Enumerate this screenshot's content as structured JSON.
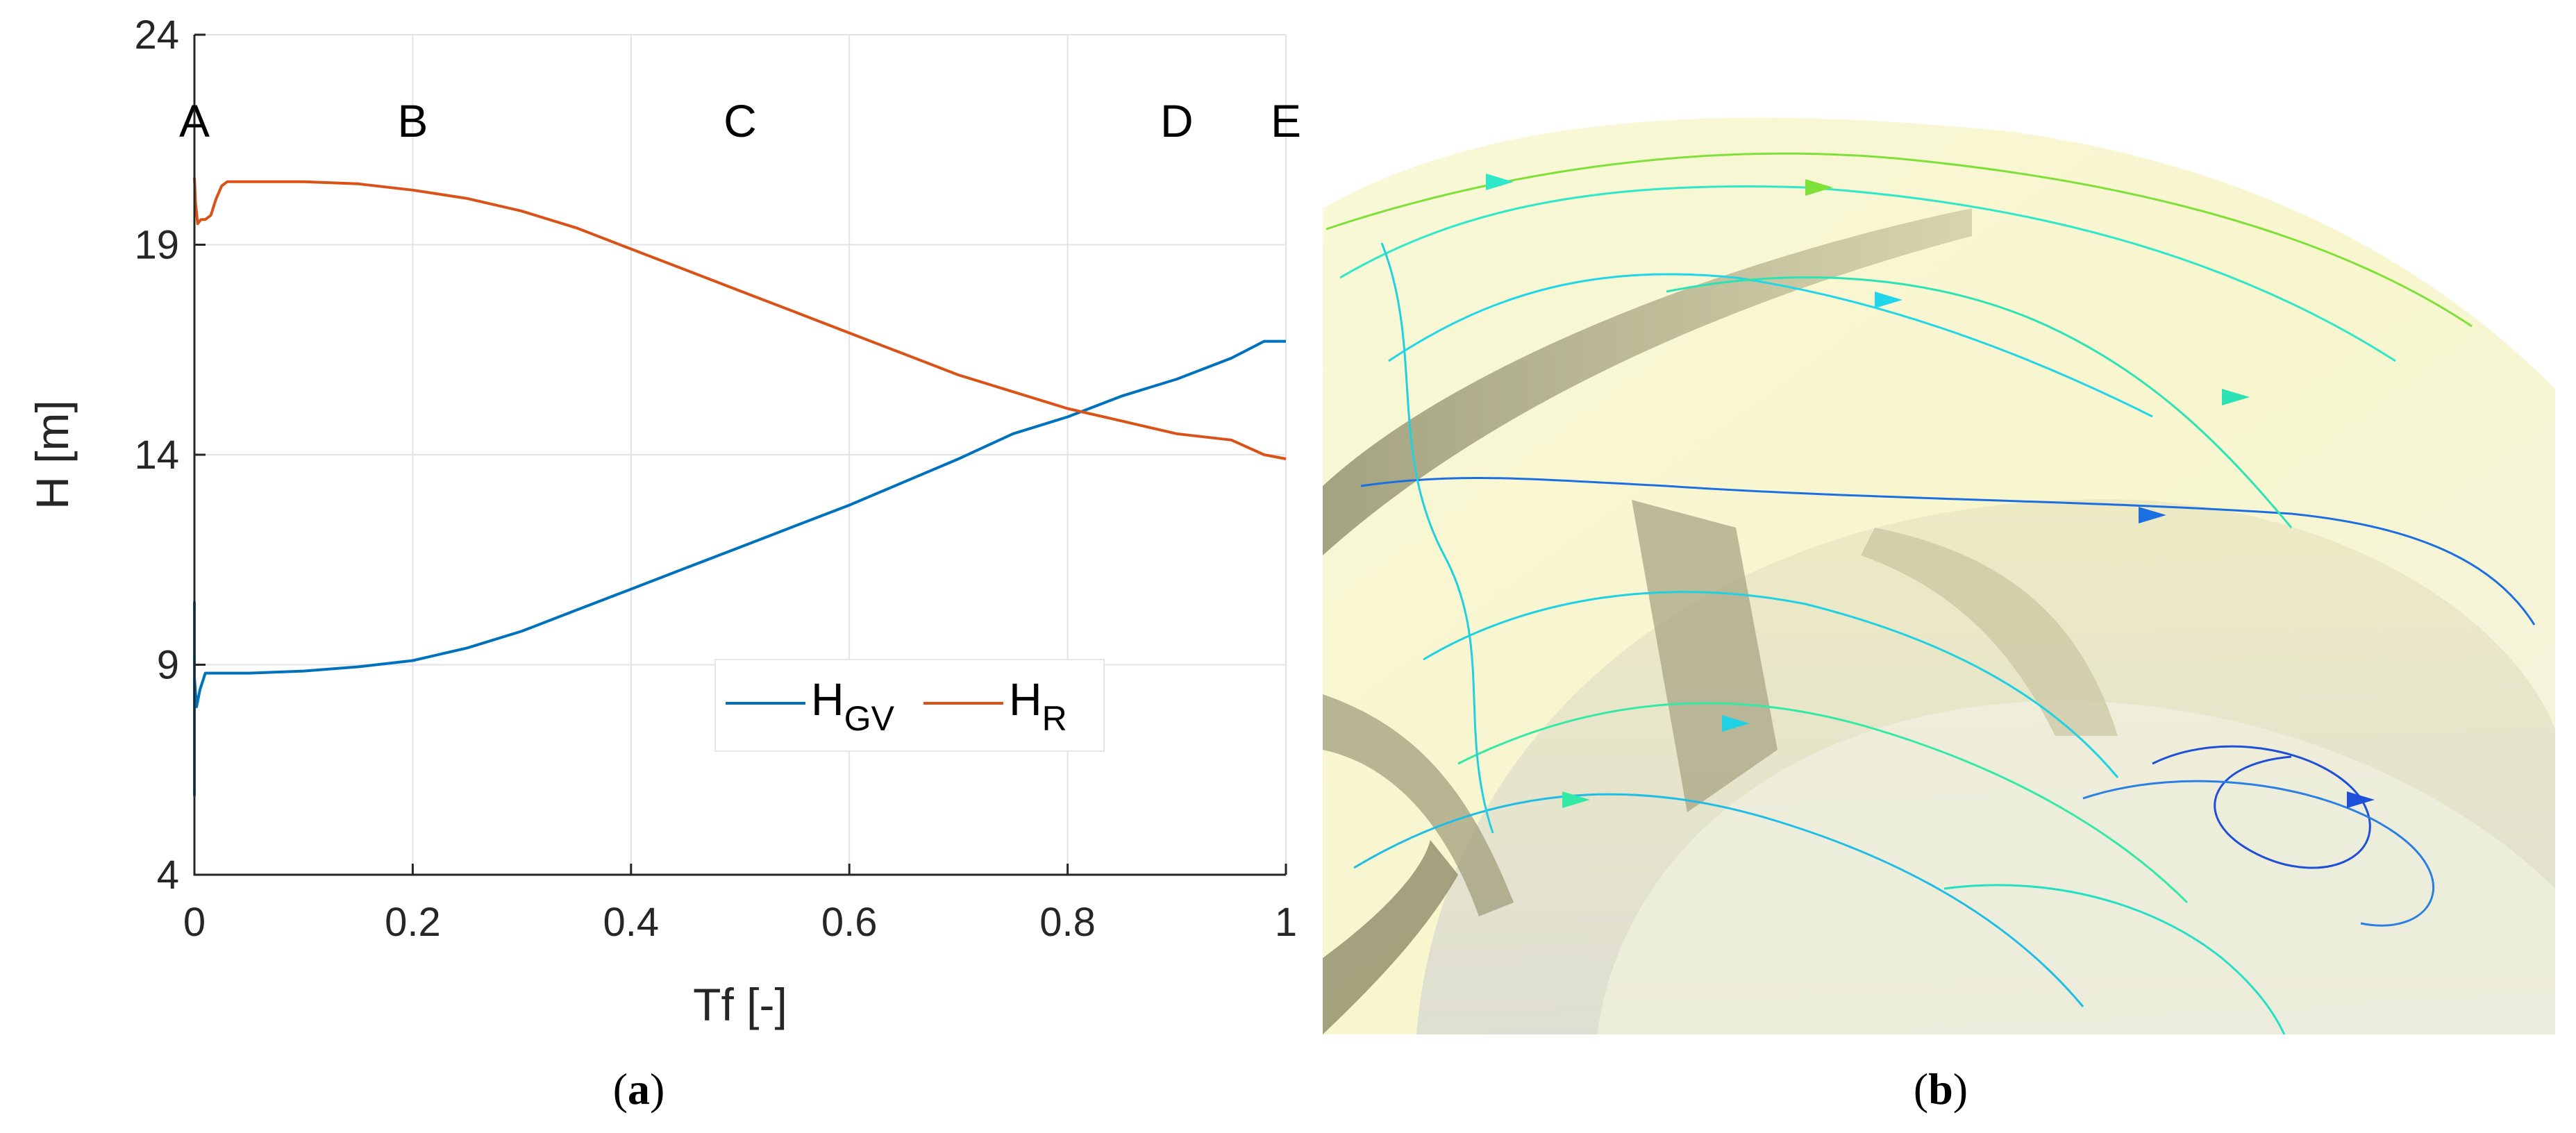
{
  "chart_data": [
    {
      "type": "line",
      "panel": "(a)",
      "xlabel": "Tf [-]",
      "ylabel": "H [m]",
      "xlim": [
        0,
        1
      ],
      "ylim": [
        4,
        24
      ],
      "x_ticks": [
        "0",
        "0.2",
        "0.4",
        "0.6",
        "0.8",
        "1"
      ],
      "y_ticks": [
        "4",
        "9",
        "14",
        "19",
        "24"
      ],
      "grid": true,
      "legend_position": "lower-right",
      "annotations": [
        {
          "text": "A",
          "x": 0.0
        },
        {
          "text": "B",
          "x": 0.2
        },
        {
          "text": "C",
          "x": 0.5
        },
        {
          "text": "D",
          "x": 0.9
        },
        {
          "text": "E",
          "x": 1.0
        }
      ],
      "series": [
        {
          "name": "H_GV",
          "legend_main": "H",
          "legend_sub": "GV",
          "color": "#0072BD",
          "x": [
            0,
            0,
            0,
            0.002,
            0.005,
            0.01,
            0.02,
            0.05,
            0.1,
            0.15,
            0.2,
            0.25,
            0.3,
            0.35,
            0.4,
            0.45,
            0.5,
            0.55,
            0.6,
            0.65,
            0.7,
            0.75,
            0.8,
            0.85,
            0.9,
            0.95,
            0.98,
            1.0
          ],
          "y": [
            10.5,
            5.9,
            8.7,
            8.0,
            8.4,
            8.8,
            8.8,
            8.8,
            8.85,
            8.95,
            9.1,
            9.4,
            9.8,
            10.3,
            10.8,
            11.3,
            11.8,
            12.3,
            12.8,
            13.35,
            13.9,
            14.5,
            14.9,
            15.4,
            15.8,
            16.3,
            16.7,
            16.7
          ]
        },
        {
          "name": "H_R",
          "legend_main": "H",
          "legend_sub": "R",
          "color": "#D95319",
          "x": [
            0,
            0.001,
            0.003,
            0.006,
            0.01,
            0.015,
            0.02,
            0.025,
            0.03,
            0.05,
            0.1,
            0.15,
            0.2,
            0.25,
            0.3,
            0.35,
            0.4,
            0.45,
            0.5,
            0.55,
            0.6,
            0.65,
            0.7,
            0.75,
            0.8,
            0.85,
            0.9,
            0.95,
            0.98,
            1.0
          ],
          "y": [
            20.6,
            20.0,
            19.5,
            19.6,
            19.6,
            19.7,
            20.1,
            20.4,
            20.5,
            20.5,
            20.5,
            20.45,
            20.3,
            20.1,
            19.8,
            19.4,
            18.9,
            18.4,
            17.9,
            17.4,
            16.9,
            16.4,
            15.9,
            15.5,
            15.1,
            14.8,
            14.5,
            14.35,
            14.0,
            13.9
          ]
        }
      ]
    }
  ],
  "image_panel": {
    "label": "(b)",
    "content": "streamline visualization of flow between vanes"
  },
  "captions": {
    "a_open": "(",
    "a_letter": "a",
    "a_close": ")",
    "b_open": "(",
    "b_letter": "b",
    "b_close": ")"
  }
}
